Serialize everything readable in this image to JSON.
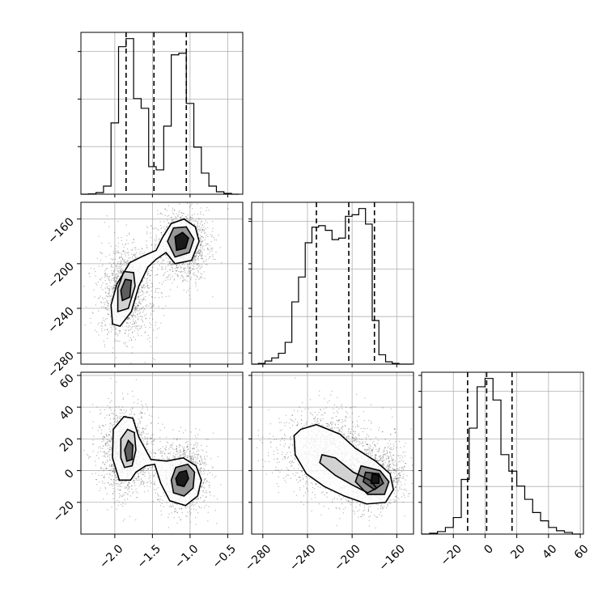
{
  "chart_data": {
    "type": "corner",
    "params": [
      {
        "id": "p0",
        "range": [
          -2.45,
          -0.3
        ],
        "ticks": [
          -2.0,
          -1.5,
          -1.0,
          -0.5
        ],
        "tick_labels": [
          "−2.0",
          "−1.5",
          "−1.0",
          "−0.5"
        ]
      },
      {
        "id": "p1",
        "range": [
          -290,
          -145
        ],
        "ticks": [
          -280,
          -240,
          -200,
          -160
        ],
        "tick_labels": [
          "−280",
          "−240",
          "−200",
          "−160"
        ]
      },
      {
        "id": "p2",
        "range": [
          -40,
          62
        ],
        "ticks": [
          -20,
          0,
          20,
          40,
          60
        ],
        "tick_labels": [
          "−20",
          "0",
          "20",
          "40",
          "60"
        ]
      }
    ],
    "histograms": [
      {
        "param": "p0",
        "bin_edges": [
          -2.45,
          -2.35,
          -2.25,
          -2.15,
          -2.05,
          -1.95,
          -1.85,
          -1.75,
          -1.65,
          -1.55,
          -1.45,
          -1.35,
          -1.25,
          -1.15,
          -1.05,
          -0.95,
          -0.85,
          -0.75,
          -0.65,
          -0.55,
          -0.45,
          -0.35
        ],
        "counts": [
          0,
          2,
          10,
          50,
          440,
          910,
          960,
          590,
          530,
          170,
          150,
          420,
          860,
          870,
          560,
          290,
          130,
          50,
          15,
          5,
          0
        ],
        "quantiles": [
          -1.85,
          -1.48,
          -1.05
        ]
      },
      {
        "param": "p1",
        "bin_edges": [
          -290,
          -284,
          -278,
          -272,
          -266,
          -260,
          -254,
          -248,
          -242,
          -236,
          -230,
          -224,
          -218,
          -212,
          -206,
          -200,
          -194,
          -188,
          -182,
          -176,
          -170,
          -164,
          -158,
          -152,
          -146
        ],
        "counts": [
          0,
          5,
          20,
          40,
          70,
          140,
          400,
          560,
          780,
          880,
          890,
          860,
          800,
          810,
          950,
          960,
          1000,
          900,
          280,
          60,
          15,
          5,
          0,
          0
        ],
        "quantiles": [
          -232,
          -203,
          -180
        ]
      },
      {
        "param": "p2",
        "bin_edges": [
          -40,
          -35,
          -30,
          -25,
          -20,
          -15,
          -10,
          -5,
          0,
          5,
          10,
          15,
          20,
          25,
          30,
          35,
          40,
          45,
          50,
          55,
          60
        ],
        "counts": [
          0,
          5,
          15,
          40,
          100,
          330,
          640,
          890,
          940,
          810,
          480,
          380,
          290,
          210,
          130,
          80,
          40,
          20,
          10,
          0
        ],
        "quantiles": [
          -11,
          1,
          17
        ]
      }
    ],
    "joint_modes": [
      {
        "mean": [
          -1.85,
          -225,
          13
        ],
        "sd": [
          0.12,
          14,
          9
        ],
        "weight": 0.5
      },
      {
        "mean": [
          -1.1,
          -183,
          -3
        ],
        "sd": [
          0.11,
          10,
          7
        ],
        "weight": 0.5
      }
    ],
    "contours": [
      {
        "x_param": "p0",
        "y_param": "p1",
        "levels": [
          [
            [
              -2.03,
              -254
            ],
            [
              -1.93,
              -256
            ],
            [
              -1.78,
              -243
            ],
            [
              -1.68,
              -220
            ],
            [
              -1.56,
              -203
            ],
            [
              -1.45,
              -196
            ],
            [
              -1.32,
              -190
            ],
            [
              -1.2,
              -200
            ],
            [
              -0.98,
              -197
            ],
            [
              -0.88,
              -180
            ],
            [
              -0.93,
              -167
            ],
            [
              -1.08,
              -160
            ],
            [
              -1.25,
              -164
            ],
            [
              -1.37,
              -177
            ],
            [
              -1.45,
              -188
            ],
            [
              -1.62,
              -193
            ],
            [
              -1.8,
              -199
            ],
            [
              -1.97,
              -218
            ],
            [
              -2.05,
              -237
            ]
          ],
          [
            [
              -1.96,
              -243
            ],
            [
              -1.82,
              -240
            ],
            [
              -1.73,
              -220
            ],
            [
              -1.75,
              -208
            ],
            [
              -1.88,
              -207
            ],
            [
              -1.96,
              -222
            ]
          ],
          [
            [
              -1.2,
              -194
            ],
            [
              -1.01,
              -190
            ],
            [
              -0.95,
              -178
            ],
            [
              -1.05,
              -167
            ],
            [
              -1.22,
              -168
            ],
            [
              -1.3,
              -180
            ]
          ],
          [
            [
              -1.9,
              -233
            ],
            [
              -1.8,
              -230
            ],
            [
              -1.78,
              -215
            ],
            [
              -1.86,
              -214
            ],
            [
              -1.92,
              -224
            ]
          ],
          [
            [
              -1.18,
              -188
            ],
            [
              -1.06,
              -186
            ],
            [
              -1.02,
              -177
            ],
            [
              -1.1,
              -172
            ],
            [
              -1.2,
              -176
            ]
          ]
        ]
      },
      {
        "x_param": "p0",
        "y_param": "p2",
        "levels": [
          [
            [
              -1.94,
              -6
            ],
            [
              -1.79,
              -6
            ],
            [
              -1.72,
              -1
            ],
            [
              -1.59,
              3
            ],
            [
              -1.47,
              4
            ],
            [
              -1.39,
              -8
            ],
            [
              -1.27,
              -19
            ],
            [
              -1.06,
              -22
            ],
            [
              -0.9,
              -16
            ],
            [
              -0.85,
              -6
            ],
            [
              -0.92,
              3
            ],
            [
              -1.09,
              8
            ],
            [
              -1.31,
              6
            ],
            [
              -1.52,
              7
            ],
            [
              -1.68,
              21
            ],
            [
              -1.76,
              33
            ],
            [
              -1.88,
              34
            ],
            [
              -2.02,
              26
            ],
            [
              -2.03,
              8
            ]
          ],
          [
            [
              -1.87,
              2
            ],
            [
              -1.77,
              3
            ],
            [
              -1.72,
              13
            ],
            [
              -1.74,
              24
            ],
            [
              -1.83,
              26
            ],
            [
              -1.92,
              20
            ],
            [
              -1.92,
              8
            ]
          ],
          [
            [
              -1.22,
              -14
            ],
            [
              -1.08,
              -16
            ],
            [
              -0.96,
              -11
            ],
            [
              -0.94,
              -1
            ],
            [
              -1.03,
              4
            ],
            [
              -1.19,
              2
            ],
            [
              -1.25,
              -6
            ]
          ],
          [
            [
              -1.84,
              6
            ],
            [
              -1.77,
              7
            ],
            [
              -1.76,
              16
            ],
            [
              -1.82,
              19
            ],
            [
              -1.87,
              13
            ]
          ],
          [
            [
              -1.17,
              -9
            ],
            [
              -1.08,
              -10
            ],
            [
              -1.02,
              -5
            ],
            [
              -1.05,
              0
            ],
            [
              -1.14,
              -1
            ],
            [
              -1.19,
              -5
            ]
          ]
        ]
      },
      {
        "x_param": "p1",
        "y_param": "p2",
        "levels": [
          [
            [
              -246,
              26
            ],
            [
              -232,
              29
            ],
            [
              -211,
              23
            ],
            [
              -197,
              14
            ],
            [
              -179,
              6
            ],
            [
              -166,
              -2
            ],
            [
              -163,
              -12
            ],
            [
              -170,
              -20
            ],
            [
              -187,
              -21
            ],
            [
              -207,
              -16
            ],
            [
              -225,
              -10
            ],
            [
              -241,
              -2
            ],
            [
              -251,
              10
            ],
            [
              -252,
              22
            ]
          ],
          [
            [
              -227,
              10
            ],
            [
              -215,
              8
            ],
            [
              -199,
              -1
            ],
            [
              -184,
              -6
            ],
            [
              -178,
              -11
            ],
            [
              -186,
              -14
            ],
            [
              -200,
              -9
            ],
            [
              -215,
              -3
            ],
            [
              -229,
              5
            ]
          ],
          [
            [
              -192,
              3
            ],
            [
              -175,
              0
            ],
            [
              -167,
              -7
            ],
            [
              -171,
              -15
            ],
            [
              -186,
              -15
            ],
            [
              -197,
              -7
            ]
          ],
          [
            [
              -188,
              -1
            ],
            [
              -176,
              -2
            ],
            [
              -172,
              -8
            ],
            [
              -180,
              -12
            ],
            [
              -190,
              -7
            ]
          ],
          [
            [
              -182,
              -2
            ],
            [
              -176,
              -3
            ],
            [
              -176,
              -8
            ],
            [
              -183,
              -8
            ]
          ]
        ]
      }
    ]
  }
}
